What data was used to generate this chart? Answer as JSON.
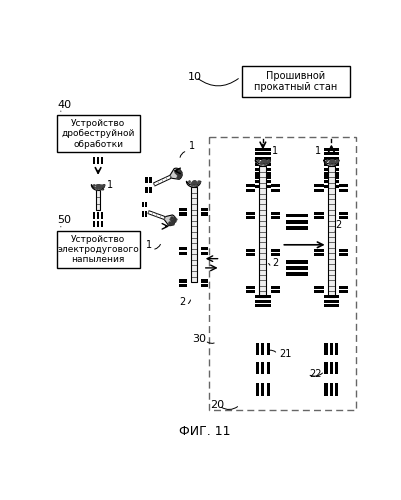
{
  "title": "ФИГ. 11",
  "box1_text": "Устройство\nдробеструйной\nобработки",
  "box2_text": "Устройство\nэлектродугового\nнапыления",
  "box3_text": "Прошивной\nпрокатный стан",
  "label_40": "40",
  "label_50": "50",
  "label_10": "10",
  "label_1": "1",
  "label_2": "2",
  "label_20": "20",
  "label_21": "21",
  "label_22": "22",
  "label_30": "30",
  "bg_color": "#ffffff",
  "line_color": "#000000"
}
